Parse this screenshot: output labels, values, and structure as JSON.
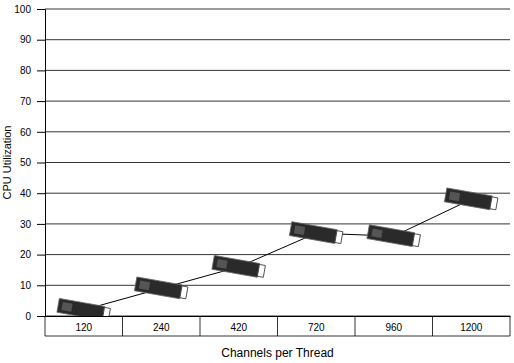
{
  "chart_data": {
    "type": "line",
    "x_label": "Channels per Thread",
    "y_label": "CPU Utilization",
    "categories": [
      "120",
      "240",
      "420",
      "720",
      "960",
      "1200"
    ],
    "values": [
      2,
      9,
      16,
      27,
      26,
      38
    ],
    "color": "#000000",
    "marker": "server",
    "ylim": [
      0,
      100
    ],
    "yticks": [
      0,
      10,
      20,
      30,
      40,
      50,
      60,
      70,
      80,
      90,
      100
    ],
    "grid": true
  }
}
